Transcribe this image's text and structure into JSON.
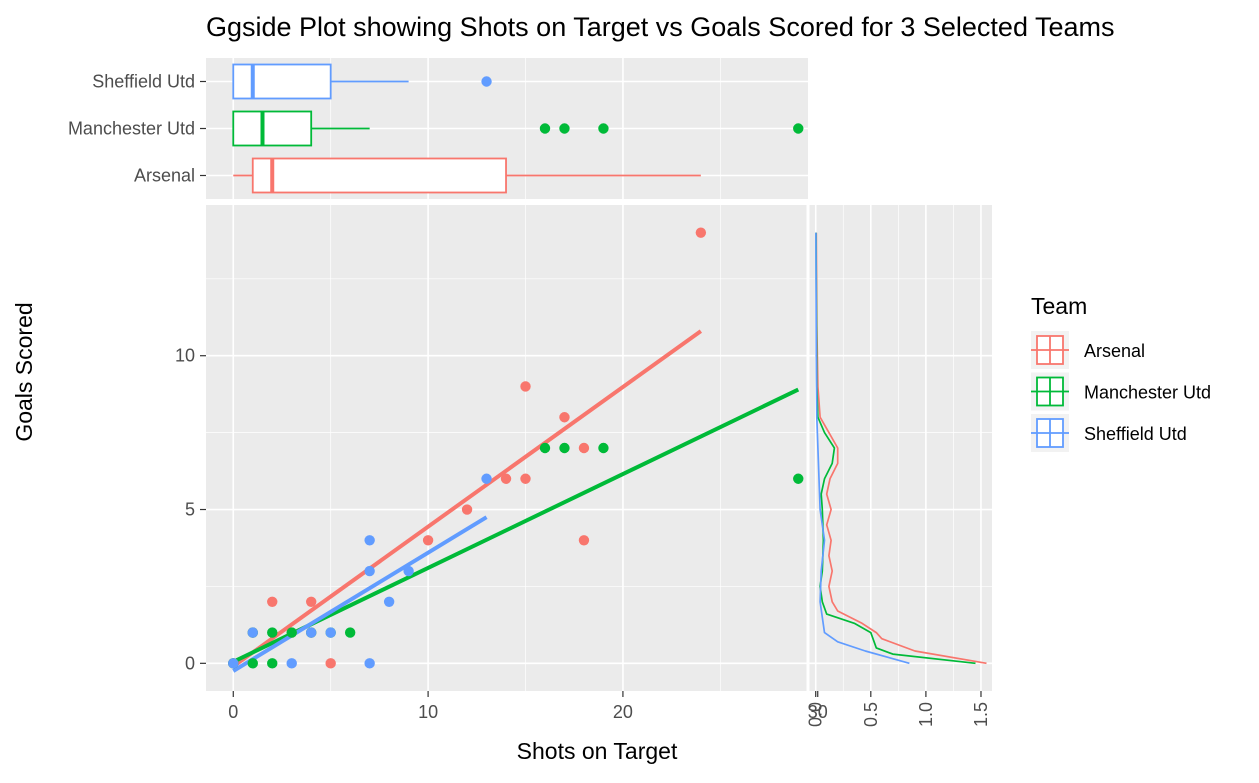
{
  "chart_data": {
    "type": "scatter",
    "title": "Ggside Plot showing Shots on Target vs Goals Scored for 3 Selected Teams",
    "xlabel": "Shots on Target",
    "ylabel": "Goals Scored",
    "xlim": [
      -1.4,
      29.5
    ],
    "ylim": [
      -0.9,
      14.9
    ],
    "x_ticks": [
      0,
      10,
      20,
      30
    ],
    "y_ticks": [
      0,
      5,
      10
    ],
    "grid": true,
    "legend": {
      "title": "Team",
      "position": "right",
      "entries": [
        "Arsenal",
        "Manchester Utd",
        "Sheffield Utd"
      ]
    },
    "colors": {
      "Arsenal": "#F8766D",
      "Manchester Utd": "#00BA38",
      "Sheffield Utd": "#619CFF",
      "panel_bg": "#EBEBEB",
      "grid": "#FFFFFF"
    },
    "series": [
      {
        "name": "Arsenal",
        "points": [
          [
            0,
            0
          ],
          [
            1,
            1
          ],
          [
            2,
            2
          ],
          [
            3,
            1
          ],
          [
            4,
            2
          ],
          [
            4,
            1
          ],
          [
            5,
            0
          ],
          [
            10,
            4
          ],
          [
            12,
            5
          ],
          [
            14,
            6
          ],
          [
            15,
            6
          ],
          [
            15,
            9
          ],
          [
            17,
            8
          ],
          [
            18,
            7
          ],
          [
            18,
            4
          ],
          [
            24,
            14
          ]
        ],
        "fit_line": [
          [
            0,
            -0.1
          ],
          [
            24,
            10.8
          ]
        ],
        "boxplot": {
          "min": 0,
          "q1": 1,
          "median": 2,
          "q3": 14,
          "max": 24,
          "outliers": []
        },
        "density": [
          [
            0.0,
            1.55
          ],
          [
            0.4,
            0.9
          ],
          [
            0.8,
            0.6
          ],
          [
            1.0,
            0.55
          ],
          [
            1.3,
            0.42
          ],
          [
            1.7,
            0.2
          ],
          [
            2.0,
            0.15
          ],
          [
            2.5,
            0.12
          ],
          [
            3.0,
            0.15
          ],
          [
            3.5,
            0.12
          ],
          [
            4.0,
            0.14
          ],
          [
            4.5,
            0.1
          ],
          [
            5.0,
            0.14
          ],
          [
            5.5,
            0.1
          ],
          [
            6.0,
            0.13
          ],
          [
            6.5,
            0.2
          ],
          [
            7.0,
            0.2
          ],
          [
            7.5,
            0.12
          ],
          [
            8.0,
            0.04
          ],
          [
            9.0,
            0.02
          ],
          [
            11.0,
            0.01
          ],
          [
            14.0,
            0.005
          ]
        ]
      },
      {
        "name": "Manchester Utd",
        "points": [
          [
            0,
            0
          ],
          [
            1,
            0
          ],
          [
            1,
            1
          ],
          [
            2,
            0
          ],
          [
            2,
            1
          ],
          [
            3,
            1
          ],
          [
            4,
            1
          ],
          [
            5,
            1
          ],
          [
            6,
            1
          ],
          [
            16,
            7
          ],
          [
            17,
            7
          ],
          [
            19,
            7
          ],
          [
            29,
            6
          ]
        ],
        "fit_line": [
          [
            0,
            0.05
          ],
          [
            29,
            8.9
          ]
        ],
        "boxplot": {
          "min": 0,
          "q1": 0,
          "median": 1.5,
          "q3": 4,
          "max": 7,
          "outliers": [
            16,
            17,
            19,
            29
          ]
        },
        "density": [
          [
            0.0,
            1.45
          ],
          [
            0.3,
            0.7
          ],
          [
            0.5,
            0.55
          ],
          [
            1.0,
            0.5
          ],
          [
            1.3,
            0.35
          ],
          [
            1.6,
            0.1
          ],
          [
            2.0,
            0.06
          ],
          [
            2.5,
            0.04
          ],
          [
            3.0,
            0.06
          ],
          [
            4.0,
            0.07
          ],
          [
            5.0,
            0.06
          ],
          [
            5.5,
            0.05
          ],
          [
            6.0,
            0.08
          ],
          [
            6.5,
            0.15
          ],
          [
            7.0,
            0.17
          ],
          [
            7.5,
            0.08
          ],
          [
            8.0,
            0.02
          ],
          [
            9.0,
            0.01
          ],
          [
            14.0,
            0.003
          ]
        ]
      },
      {
        "name": "Sheffield Utd",
        "points": [
          [
            0,
            0
          ],
          [
            1,
            1
          ],
          [
            3,
            0
          ],
          [
            4,
            1
          ],
          [
            5,
            1
          ],
          [
            7,
            0
          ],
          [
            7,
            3
          ],
          [
            7,
            4
          ],
          [
            8,
            2
          ],
          [
            9,
            3
          ],
          [
            13,
            6
          ]
        ],
        "fit_line": [
          [
            0,
            -0.25
          ],
          [
            13,
            4.75
          ]
        ],
        "boxplot": {
          "min": 0,
          "q1": 0,
          "median": 1,
          "q3": 5,
          "max": 9,
          "outliers": [
            13
          ]
        },
        "density": [
          [
            0.0,
            0.85
          ],
          [
            0.4,
            0.45
          ],
          [
            0.7,
            0.2
          ],
          [
            1.0,
            0.08
          ],
          [
            1.5,
            0.06
          ],
          [
            2.0,
            0.04
          ],
          [
            3.0,
            0.05
          ],
          [
            4.0,
            0.08
          ],
          [
            4.5,
            0.06
          ],
          [
            5.0,
            0.04
          ],
          [
            6.0,
            0.03
          ],
          [
            7.0,
            0.02
          ],
          [
            8.0,
            0.01
          ],
          [
            10.0,
            0.005
          ],
          [
            14.0,
            0.002
          ]
        ]
      }
    ],
    "density_axis": {
      "ticks": [
        0.0,
        0.5,
        1.0,
        1.5
      ],
      "tick_labels": [
        "0.0",
        "0.5",
        "1.0",
        "1.5"
      ],
      "lim": [
        -0.07,
        1.6
      ]
    }
  }
}
